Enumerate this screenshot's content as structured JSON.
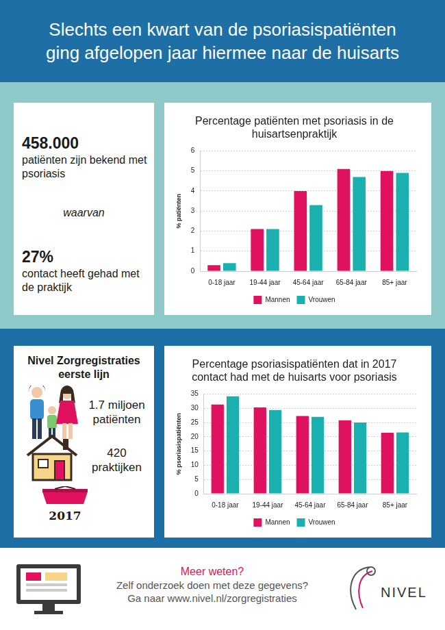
{
  "header": {
    "title": [
      "Slechts een kwart van de psoriasispatiënten",
      "ging afgelopen jaar hiermee naar de huisarts"
    ]
  },
  "panel_1": {
    "number_1": "458.000",
    "text_1": "patiënten zijn bekend met psoriasis",
    "connector": "waarvan",
    "number_2": "27%",
    "text_2": "contact heeft gehad met de praktijk"
  },
  "panel_2": {
    "title": "Nivel Zorgregistraties eerste lijn",
    "patients": "1.7 miljoen patiënten",
    "practices": "420 praktijken",
    "year": "2017"
  },
  "footer": {
    "line_1": "Meer weten?",
    "line_2": "Zelf onderzoek doen met deze gegevens?",
    "line_3": "Ga naar www.nivel.nl/zorgregistraties",
    "logo": "NIVEL"
  },
  "chart_data": [
    {
      "type": "bar",
      "title": [
        "Percentage patiënten met psoriasis in de",
        "huisartsenpraktijk"
      ],
      "y_label": "% patiënten",
      "categories": [
        "0-18 jaar",
        "19-44 jaar",
        "45-64 jaar",
        "65-84 jaar",
        "85+ jaar"
      ],
      "series": [
        {
          "name": "Mannen",
          "color": "#e0115f",
          "values": [
            0.3,
            2.1,
            4.0,
            5.1,
            5.0
          ]
        },
        {
          "name": "Vrouwen",
          "color": "#1ab0b0",
          "values": [
            0.4,
            2.1,
            3.3,
            4.7,
            4.9
          ]
        }
      ],
      "ylim": [
        0,
        6
      ],
      "yticks": [
        0,
        1,
        2,
        3,
        4,
        5,
        6
      ],
      "grid": "y",
      "legend": "bottom"
    },
    {
      "type": "bar",
      "title": [
        "Percentage psoriasispatiënten dat in 2017",
        "contact had met de huisarts voor psoriasis"
      ],
      "y_label": "% psoriasispatiënten",
      "categories": [
        "0-18 jaar",
        "19-44 jaar",
        "45-64 jaar",
        "65-84 jaar",
        "85+ jaar"
      ],
      "series": [
        {
          "name": "Mannen",
          "color": "#e0115f",
          "values": [
            31.3,
            30.3,
            27.3,
            25.8,
            21.4
          ]
        },
        {
          "name": "Vrouwen",
          "color": "#1ab0b0",
          "values": [
            34.2,
            29.4,
            27.0,
            25.0,
            21.5
          ]
        }
      ],
      "ylim": [
        0,
        35
      ],
      "yticks": [
        0,
        5,
        10,
        15,
        20,
        25,
        30,
        35
      ],
      "grid": "y",
      "legend": "bottom"
    }
  ]
}
